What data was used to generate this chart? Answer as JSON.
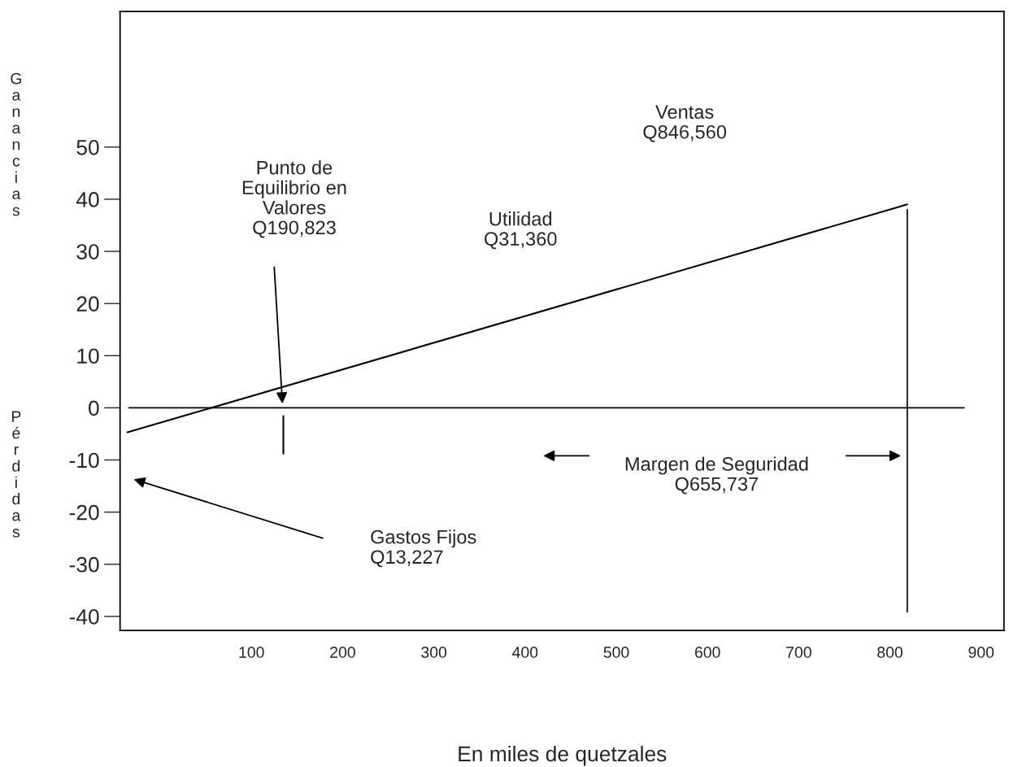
{
  "chart_data": {
    "type": "line",
    "xlabel": "En miles de quetzales",
    "ylabel": "Ganancias",
    "series": [
      {
        "color": "#000000",
        "x": [
          -36,
          819
        ],
        "values": [
          -4.7,
          39
        ]
      },
      {
        "color": "#000000",
        "x": [
          135,
          135
        ],
        "values": [
          -1.6,
          -8.8
        ]
      }
    ],
    "ref_lines": [
      {
        "axis": "y",
        "value": 0,
        "color": "#000000"
      },
      {
        "axis": "x",
        "value": 819,
        "color": "#000000"
      }
    ],
    "annotations": [
      "Pérdidas",
      "Punto de\nEquilibrio en\nValores\nQ190,823",
      "Gastos Fijos\nQ13,227",
      "Utilidad\nQ31,360",
      "Ventas\nQ846,560",
      "Margen de Seguridad\nQ655,737"
    ],
    "xlim": [
      -44,
      925
    ],
    "ylim": [
      -42.7,
      76
    ],
    "xticks": [
      100,
      200,
      300,
      400,
      500,
      600,
      700,
      800,
      900
    ],
    "yticks": [
      -40,
      -30,
      -20,
      -10,
      0,
      10,
      20,
      30,
      40,
      50
    ],
    "grid": false,
    "legend": false
  }
}
